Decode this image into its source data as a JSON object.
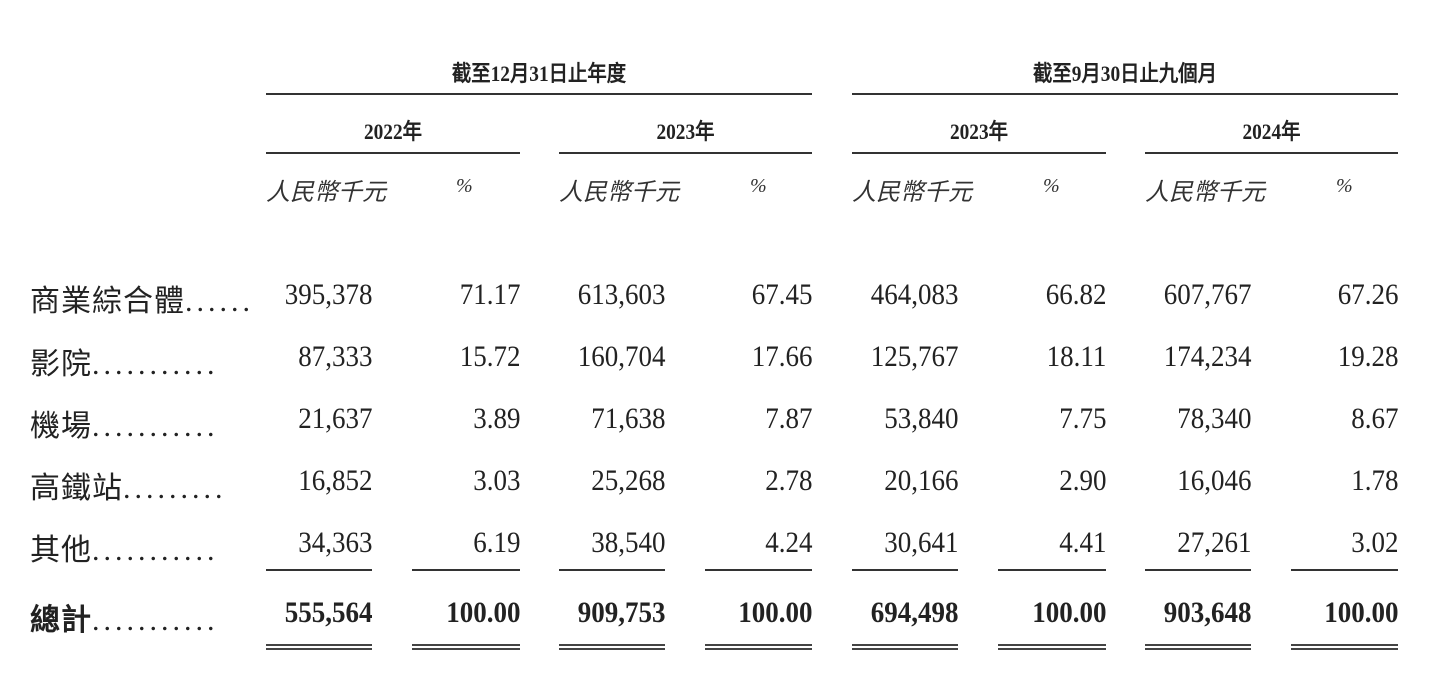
{
  "header": {
    "periods": [
      {
        "label": "截至12月31日止年度"
      },
      {
        "label": "截至9月30日止九個月"
      }
    ],
    "years": [
      "2022年",
      "2023年",
      "2023年",
      "2024年"
    ],
    "unit_amount": "人民幣千元",
    "unit_percent": "%"
  },
  "rows": [
    {
      "label": "商業綜合體",
      "dots": "......",
      "values": [
        "395,378",
        "71.17",
        "613,603",
        "67.45",
        "464,083",
        "66.82",
        "607,767",
        "67.26"
      ]
    },
    {
      "label": "影院",
      "dots": "...........",
      "values": [
        "87,333",
        "15.72",
        "160,704",
        "17.66",
        "125,767",
        "18.11",
        "174,234",
        "19.28"
      ]
    },
    {
      "label": "機場",
      "dots": "...........",
      "values": [
        "21,637",
        "3.89",
        "71,638",
        "7.87",
        "53,840",
        "7.75",
        "78,340",
        "8.67"
      ]
    },
    {
      "label": "高鐵站",
      "dots": ".........",
      "values": [
        "16,852",
        "3.03",
        "25,268",
        "2.78",
        "20,166",
        "2.90",
        "16,046",
        "1.78"
      ]
    },
    {
      "label": "其他",
      "dots": "...........",
      "values": [
        "34,363",
        "6.19",
        "38,540",
        "4.24",
        "30,641",
        "4.41",
        "27,261",
        "3.02"
      ]
    }
  ],
  "total": {
    "label": "總計",
    "dots": "...........",
    "values": [
      "555,564",
      "100.00",
      "909,753",
      "100.00",
      "694,498",
      "100.00",
      "903,648",
      "100.00"
    ]
  }
}
